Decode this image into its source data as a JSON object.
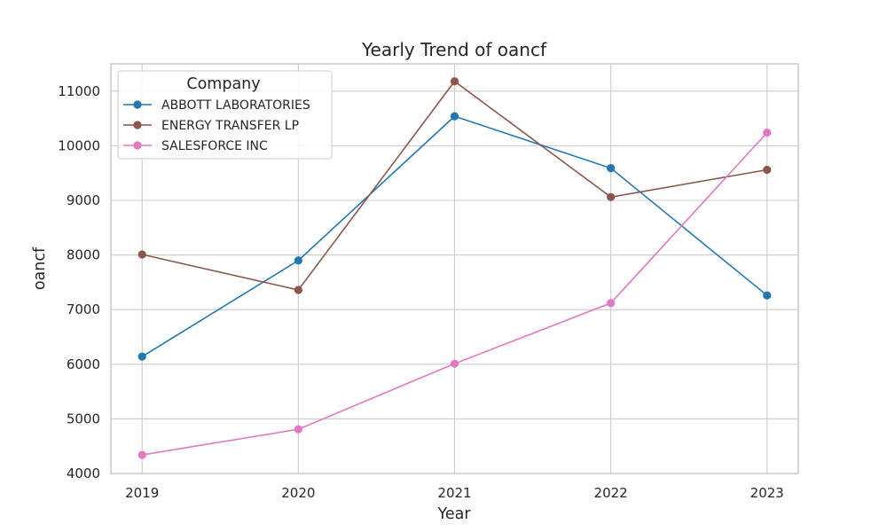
{
  "chart_data": {
    "type": "line",
    "title": "Yearly Trend of oancf",
    "xlabel": "Year",
    "ylabel": "oancf",
    "x": [
      2019,
      2020,
      2021,
      2022,
      2023
    ],
    "x_tick_labels": [
      "2019",
      "2020",
      "2021",
      "2022",
      "2023"
    ],
    "xlim": [
      2018.8,
      2023.2
    ],
    "ylim": [
      4000,
      11500
    ],
    "y_ticks": [
      4000,
      5000,
      6000,
      7000,
      8000,
      9000,
      10000,
      11000
    ],
    "y_tick_labels": [
      "4000",
      "5000",
      "6000",
      "7000",
      "8000",
      "9000",
      "10000",
      "11000"
    ],
    "grid": true,
    "legend": {
      "title": "Company",
      "position": "top-left"
    },
    "series": [
      {
        "name": "ABBOTT LABORATORIES",
        "color": "#1f77b4",
        "values": [
          6140,
          7900,
          10540,
          9590,
          7260
        ]
      },
      {
        "name": "ENERGY TRANSFER LP",
        "color": "#8c564b",
        "values": [
          8010,
          7360,
          11180,
          9060,
          9560
        ]
      },
      {
        "name": "SALESFORCE INC",
        "color": "#e377c2",
        "values": [
          4340,
          4810,
          6010,
          7120,
          10240
        ]
      }
    ]
  }
}
